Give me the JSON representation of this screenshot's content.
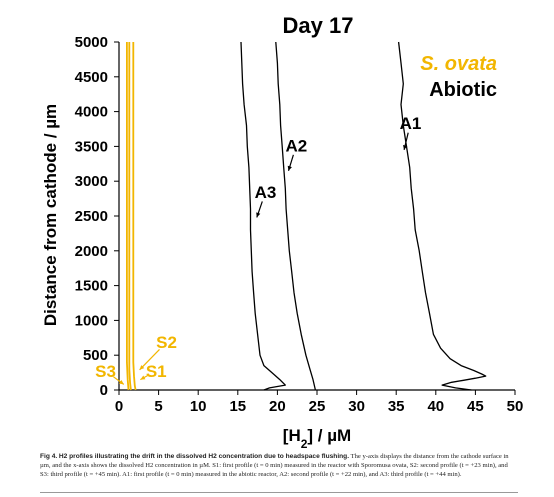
{
  "figure": {
    "caption_label": "Fig 4.",
    "caption_heading": "H2 profiles illustrating the drift in the dissolved H2 concentration due to headspace flushing.",
    "caption_body": "The y-axis displays the distance from the cathode surface in µm, and the x-axis shows the dissolved H2 concentration in µM. S1: first profile (t = 0 min) measured in the reactor with Sporomusa ovata, S2: second profile (t = +23 min), and S3: third profile (t = +45 min). A1: first profile (t = 0 min) measured in the abiotic reactor, A2: second profile (t = +22 min), and A3: third profile (t = +44 min)."
  },
  "chart_data": {
    "type": "line",
    "title": "Day 17",
    "xlabel": "[H2] / µM",
    "ylabel": "Distance from cathode / µm",
    "xlim": [
      0,
      50
    ],
    "ylim": [
      0,
      5000
    ],
    "x_ticks": [
      "0",
      "5",
      "10",
      "15",
      "20",
      "25",
      "30",
      "35",
      "40",
      "45",
      "50"
    ],
    "y_ticks": [
      "0",
      "500",
      "1000",
      "1500",
      "2000",
      "2500",
      "3000",
      "3500",
      "4000",
      "4500",
      "5000"
    ],
    "grid": false,
    "legend_position": "top-right",
    "legend": [
      {
        "label": "S. ovata",
        "color": "#F2B600",
        "italic": true
      },
      {
        "label": "Abiotic",
        "color": "#000000",
        "italic": false
      }
    ],
    "colors": {
      "s_ovata": "#F2B600",
      "abiotic": "#000000"
    },
    "series": [
      {
        "name": "A1",
        "group": "abiotic",
        "color": "#000000",
        "points": [
          [
            35.3,
            5000
          ],
          [
            35.6,
            4700
          ],
          [
            35.9,
            4400
          ],
          [
            35.6,
            4100
          ],
          [
            35.9,
            3800
          ],
          [
            36.3,
            3500
          ],
          [
            36.7,
            3200
          ],
          [
            36.9,
            2900
          ],
          [
            37.2,
            2600
          ],
          [
            37.4,
            2300
          ],
          [
            37.9,
            2000
          ],
          [
            38.3,
            1700
          ],
          [
            38.7,
            1400
          ],
          [
            39.2,
            1100
          ],
          [
            39.7,
            800
          ],
          [
            40.6,
            600
          ],
          [
            41.8,
            450
          ],
          [
            43.2,
            350
          ],
          [
            44.8,
            280
          ],
          [
            45.8,
            230
          ],
          [
            46.3,
            200
          ],
          [
            45.0,
            170
          ],
          [
            43.5,
            140
          ],
          [
            42.0,
            110
          ],
          [
            40.8,
            70
          ],
          [
            42.5,
            30
          ],
          [
            44.5,
            0
          ]
        ]
      },
      {
        "name": "A2",
        "group": "abiotic",
        "color": "#000000",
        "points": [
          [
            19.8,
            5000
          ],
          [
            20.0,
            4700
          ],
          [
            20.1,
            4400
          ],
          [
            20.3,
            4100
          ],
          [
            20.4,
            3800
          ],
          [
            20.6,
            3500
          ],
          [
            20.8,
            3200
          ],
          [
            21.0,
            2900
          ],
          [
            21.1,
            2600
          ],
          [
            21.3,
            2300
          ],
          [
            21.5,
            2000
          ],
          [
            21.8,
            1700
          ],
          [
            22.1,
            1400
          ],
          [
            22.5,
            1100
          ],
          [
            23.0,
            800
          ],
          [
            23.6,
            500
          ],
          [
            24.1,
            300
          ],
          [
            24.5,
            150
          ],
          [
            24.8,
            0
          ]
        ]
      },
      {
        "name": "A3",
        "group": "abiotic",
        "color": "#000000",
        "points": [
          [
            15.4,
            5000
          ],
          [
            15.5,
            4700
          ],
          [
            15.6,
            4400
          ],
          [
            15.8,
            4100
          ],
          [
            16.1,
            3800
          ],
          [
            16.2,
            3500
          ],
          [
            16.4,
            3200
          ],
          [
            16.5,
            2900
          ],
          [
            16.6,
            2600
          ],
          [
            16.6,
            2300
          ],
          [
            16.7,
            2000
          ],
          [
            16.8,
            1700
          ],
          [
            17.0,
            1400
          ],
          [
            17.2,
            1100
          ],
          [
            17.5,
            800
          ],
          [
            17.8,
            500
          ],
          [
            18.3,
            350
          ],
          [
            19.3,
            250
          ],
          [
            20.3,
            150
          ],
          [
            21.0,
            70
          ],
          [
            19.0,
            30
          ],
          [
            18.3,
            0
          ]
        ]
      },
      {
        "name": "S1",
        "group": "s_ovata",
        "color": "#F2B600",
        "points": [
          [
            1.8,
            5000
          ],
          [
            1.8,
            4000
          ],
          [
            1.8,
            3000
          ],
          [
            1.8,
            2000
          ],
          [
            1.8,
            1000
          ],
          [
            1.8,
            400
          ],
          [
            1.9,
            200
          ],
          [
            2.0,
            60
          ],
          [
            2.1,
            0
          ]
        ]
      },
      {
        "name": "S2",
        "group": "s_ovata",
        "color": "#F2B600",
        "points": [
          [
            1.3,
            5000
          ],
          [
            1.3,
            4000
          ],
          [
            1.3,
            3000
          ],
          [
            1.3,
            2000
          ],
          [
            1.3,
            1000
          ],
          [
            1.3,
            300
          ],
          [
            1.4,
            100
          ],
          [
            1.5,
            0
          ]
        ]
      },
      {
        "name": "S3",
        "group": "s_ovata",
        "color": "#F2B600",
        "points": [
          [
            1.0,
            5000
          ],
          [
            1.0,
            4000
          ],
          [
            1.0,
            3000
          ],
          [
            1.0,
            2000
          ],
          [
            1.0,
            1000
          ],
          [
            1.0,
            400
          ],
          [
            1.1,
            150
          ],
          [
            1.2,
            0
          ]
        ]
      }
    ],
    "annotations": [
      {
        "text": "A1",
        "color": "#000000",
        "at": [
          36.8,
          3750
        ],
        "arrow_to": [
          36.0,
          3450
        ]
      },
      {
        "text": "A2",
        "color": "#000000",
        "at": [
          22.4,
          3430
        ],
        "arrow_to": [
          21.4,
          3150
        ]
      },
      {
        "text": "A3",
        "color": "#000000",
        "at": [
          18.5,
          2760
        ],
        "arrow_to": [
          17.4,
          2480
        ]
      },
      {
        "text": "S1",
        "color": "#F2B600",
        "at": [
          4.7,
          190
        ],
        "arrow_to": [
          2.7,
          150
        ]
      },
      {
        "text": "S2",
        "color": "#F2B600",
        "at": [
          6.0,
          600
        ],
        "arrow_to": [
          2.6,
          290
        ]
      },
      {
        "text": "S3",
        "color": "#F2B600",
        "at": [
          -1.7,
          190
        ],
        "arrow_to": [
          0.6,
          80
        ]
      }
    ]
  }
}
